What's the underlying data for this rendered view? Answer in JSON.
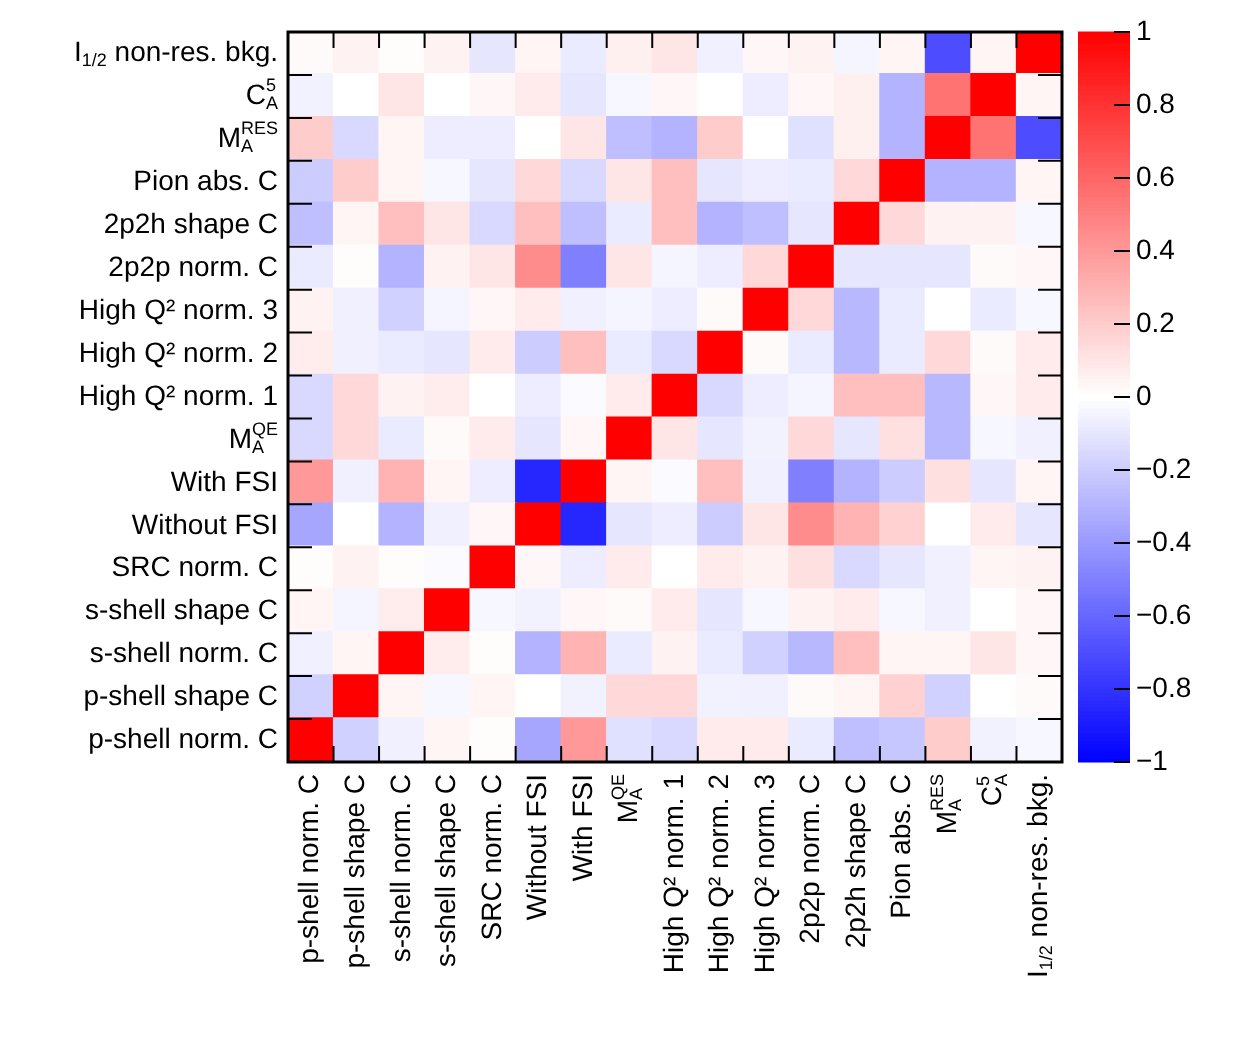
{
  "chart_data": {
    "type": "heatmap",
    "categories": [
      "p-shell norm. C",
      "p-shell shape C",
      "s-shell norm. C",
      "s-shell shape C",
      "SRC norm. C",
      "Without FSI",
      "With FSI",
      "M$_{A}$$^{QE}$",
      "High Q² norm. 1",
      "High Q² norm. 2",
      "High Q² norm. 3",
      "2p2p norm. C",
      "2p2h shape C",
      "Pion abs. C",
      "M$_{A}$$^{RES}$",
      "C$_{A}$$^{5}$",
      "I$_{1/2}$ non-res. bkg."
    ],
    "y_categories": [
      "I$_{1/2}$ non-res. bkg.",
      "C$_{A}$$^{5}$",
      "M$_{A}$$^{RES}$",
      "Pion abs. C",
      "2p2h shape C",
      "2p2p norm. C",
      "High Q² norm. 3",
      "High Q² norm. 2",
      "High Q² norm. 1",
      "M$_{A}$$^{QE}$",
      "With FSI",
      "Without FSI",
      "SRC norm. C",
      "s-shell shape C",
      "s-shell norm. C",
      "p-shell shape C",
      "p-shell norm. C"
    ],
    "cells": [
      [
        0.02,
        0.05,
        0.01,
        0.05,
        -0.1,
        0.04,
        -0.08,
        0.06,
        0.1,
        -0.06,
        0.03,
        0.05,
        -0.04,
        0.04,
        -0.7,
        0.04,
        1
      ],
      [
        -0.05,
        0,
        0.1,
        0,
        0.03,
        0.08,
        -0.1,
        -0.03,
        0.03,
        0,
        -0.07,
        0.03,
        0.06,
        -0.3,
        0.55,
        1,
        0.04
      ],
      [
        0.2,
        -0.15,
        0.04,
        -0.07,
        -0.07,
        0,
        0.1,
        -0.25,
        -0.3,
        0.2,
        0,
        -0.12,
        0.06,
        -0.3,
        1,
        0.55,
        -0.7
      ],
      [
        -0.2,
        0.2,
        0.04,
        -0.03,
        -0.1,
        0.15,
        -0.15,
        0.1,
        0.25,
        -0.1,
        -0.07,
        -0.08,
        0.15,
        1,
        -0.3,
        -0.3,
        0.04
      ],
      [
        -0.25,
        0.04,
        0.25,
        0.1,
        -0.15,
        0.25,
        -0.25,
        -0.08,
        0.25,
        -0.3,
        -0.25,
        -0.1,
        1,
        0.15,
        0.05,
        0.05,
        -0.03
      ],
      [
        -0.08,
        0.01,
        -0.3,
        0.05,
        0.1,
        0.45,
        -0.5,
        0.1,
        -0.04,
        -0.07,
        0.15,
        1,
        -0.1,
        -0.1,
        -0.1,
        0.02,
        0.03
      ],
      [
        0.05,
        -0.06,
        -0.18,
        -0.04,
        0.03,
        0.08,
        -0.06,
        -0.04,
        -0.07,
        0.02,
        1,
        0.15,
        -0.28,
        -0.08,
        0,
        -0.08,
        -0.03
      ],
      [
        0.07,
        -0.06,
        -0.08,
        -0.1,
        0.08,
        -0.2,
        0.25,
        -0.08,
        -0.15,
        1,
        0.02,
        -0.08,
        -0.28,
        -0.08,
        0.15,
        0.02,
        0.08
      ],
      [
        -0.15,
        0.15,
        0.05,
        0.07,
        0,
        -0.07,
        -0.02,
        0.08,
        1,
        -0.15,
        -0.07,
        -0.04,
        0.25,
        0.25,
        -0.28,
        0.03,
        0.08
      ],
      [
        -0.15,
        0.15,
        -0.08,
        0.02,
        0.08,
        -0.1,
        0.03,
        1,
        0.1,
        -0.1,
        -0.05,
        0.15,
        -0.1,
        0.12,
        -0.28,
        -0.03,
        -0.06
      ],
      [
        0.4,
        -0.06,
        0.3,
        0.04,
        -0.07,
        -0.85,
        1,
        0.04,
        -0.02,
        0.25,
        -0.06,
        -0.5,
        -0.3,
        -0.2,
        0.12,
        -0.1,
        0.04
      ],
      [
        -0.35,
        0,
        -0.3,
        -0.06,
        0.03,
        1,
        -0.85,
        -0.1,
        -0.07,
        -0.2,
        0.1,
        0.45,
        0.3,
        0.18,
        0,
        0.08,
        -0.1
      ],
      [
        0.01,
        0.05,
        0.01,
        -0.02,
        1,
        0.03,
        -0.07,
        0.08,
        0,
        0.08,
        0.05,
        0.12,
        -0.15,
        -0.1,
        -0.06,
        0.04,
        0.05
      ],
      [
        0.04,
        -0.04,
        0.07,
        1,
        -0.03,
        -0.05,
        0.03,
        0.02,
        0.08,
        -0.1,
        -0.03,
        0.05,
        0.08,
        -0.03,
        -0.06,
        0,
        0.03
      ],
      [
        -0.06,
        0.04,
        1,
        0.07,
        0.01,
        -0.3,
        0.3,
        -0.08,
        0.05,
        -0.08,
        -0.18,
        -0.28,
        0.25,
        0.04,
        0.04,
        0.1,
        0.03
      ],
      [
        -0.18,
        1,
        0.04,
        -0.03,
        0.04,
        0,
        -0.05,
        0.15,
        0.15,
        -0.05,
        -0.06,
        0.02,
        0.04,
        0.18,
        -0.18,
        0,
        0.02
      ],
      [
        1,
        -0.18,
        -0.06,
        0.04,
        0.01,
        -0.35,
        0.4,
        -0.12,
        -0.15,
        0.08,
        0.08,
        -0.08,
        -0.25,
        -0.22,
        0.2,
        -0.05,
        -0.03
      ]
    ],
    "clim": [
      -1,
      1
    ],
    "cticks": [
      -1,
      -0.8,
      -0.6,
      -0.4,
      -0.2,
      0,
      0.2,
      0.4,
      0.6,
      0.8,
      1
    ]
  }
}
